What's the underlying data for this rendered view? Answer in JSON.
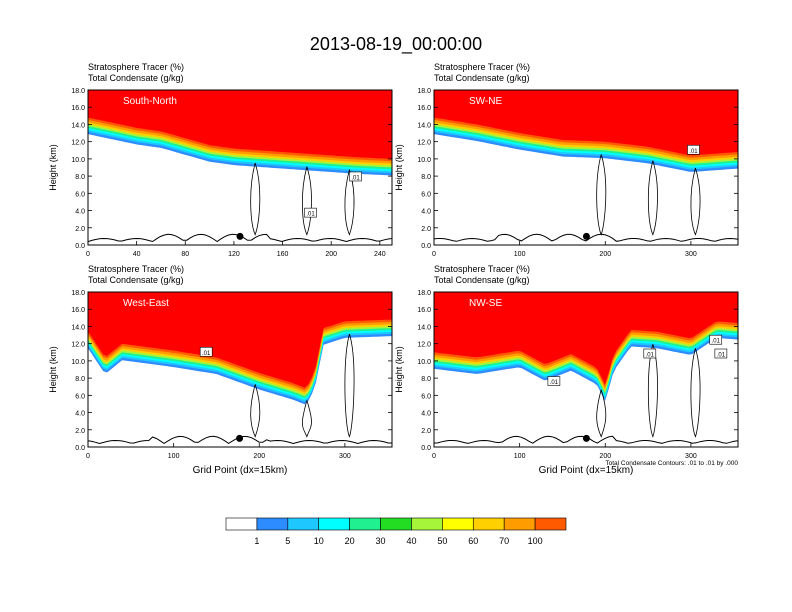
{
  "title": "2013-08-19_00:00:00",
  "colors": {
    "levels": [
      "#ffffff",
      "#2d8cff",
      "#1ec8ff",
      "#00ffff",
      "#20f090",
      "#22dd22",
      "#a6f53a",
      "#ffff00",
      "#ffd000",
      "#ff9c00",
      "#ff5a00",
      "#ff0000"
    ],
    "contour": "#000000",
    "terrain": "#000000",
    "panel_text": "#ffffff"
  },
  "colorbar": {
    "labels": [
      "1",
      "5",
      "10",
      "20",
      "30",
      "40",
      "50",
      "60",
      "70",
      "100"
    ]
  },
  "chart_data": [
    {
      "type": "contour",
      "name": "South-North",
      "title_line1": "Stratosphere Tracer   (%)",
      "title_line2": "Total Condensate   (g/kg)",
      "ylabel": "Height (km)",
      "xlabel": "",
      "xlim": [
        0,
        250
      ],
      "ylim": [
        0,
        18
      ],
      "xticks": [
        "0",
        "40",
        "80",
        "120",
        "160",
        "200",
        "240"
      ],
      "xtick_values": [
        0,
        40,
        80,
        120,
        160,
        200,
        240
      ],
      "yticks": [
        "0.0",
        "2.0",
        "4.0",
        "6.0",
        "8.0",
        "10.0",
        "12.0",
        "14.0",
        "16.0",
        "18.0"
      ],
      "tracer_floor_km": [
        [
          0,
          14.8
        ],
        [
          20,
          14.2
        ],
        [
          40,
          13.6
        ],
        [
          60,
          13.2
        ],
        [
          80,
          12.4
        ],
        [
          100,
          11.6
        ],
        [
          120,
          11.2
        ],
        [
          140,
          11.0
        ],
        [
          160,
          10.8
        ],
        [
          180,
          10.6
        ],
        [
          200,
          10.4
        ],
        [
          220,
          10.2
        ],
        [
          250,
          10.0
        ]
      ],
      "contour_labels": [
        {
          "x": 183,
          "y": 3.7,
          "text": ".01"
        },
        {
          "x": 220,
          "y": 7.9,
          "text": ".01"
        }
      ],
      "dot": {
        "x": 125,
        "y": 1.0
      }
    },
    {
      "type": "contour",
      "name": "SW-NE",
      "title_line1": "Stratosphere Tracer   (%)",
      "title_line2": "Total Condensate   (g/kg)",
      "ylabel": "Height (km)",
      "xlabel": "",
      "xlim": [
        0,
        355
      ],
      "ylim": [
        0,
        18
      ],
      "xticks": [
        "0",
        "100",
        "200",
        "300"
      ],
      "xtick_values": [
        0,
        100,
        200,
        300
      ],
      "yticks": [
        "0.0",
        "2.0",
        "4.0",
        "6.0",
        "8.0",
        "10.0",
        "12.0",
        "14.0",
        "16.0",
        "18.0"
      ],
      "tracer_floor_km": [
        [
          0,
          14.8
        ],
        [
          50,
          14.0
        ],
        [
          100,
          13.0
        ],
        [
          150,
          12.2
        ],
        [
          200,
          12.0
        ],
        [
          250,
          11.4
        ],
        [
          280,
          10.8
        ],
        [
          300,
          10.4
        ],
        [
          355,
          10.8
        ]
      ],
      "contour_labels": [
        {
          "x": 303,
          "y": 11.0,
          "text": ".01"
        }
      ],
      "dot": {
        "x": 178,
        "y": 1.0
      }
    },
    {
      "type": "contour",
      "name": "West-East",
      "title_line1": "Stratosphere Tracer   (%)",
      "title_line2": "Total Condensate   (g/kg)",
      "ylabel": "Height (km)",
      "xlabel": "Grid Point (dx=15km)",
      "xlim": [
        0,
        355
      ],
      "ylim": [
        0,
        18
      ],
      "xticks": [
        "0",
        "100",
        "200",
        "300"
      ],
      "xtick_values": [
        0,
        100,
        200,
        300
      ],
      "yticks": [
        "0.0",
        "2.0",
        "4.0",
        "6.0",
        "8.0",
        "10.0",
        "12.0",
        "14.0",
        "16.0",
        "18.0"
      ],
      "tracer_floor_km": [
        [
          0,
          13.4
        ],
        [
          20,
          10.4
        ],
        [
          40,
          12.0
        ],
        [
          70,
          11.6
        ],
        [
          100,
          11.2
        ],
        [
          150,
          10.4
        ],
        [
          200,
          8.6
        ],
        [
          240,
          7.4
        ],
        [
          255,
          6.8
        ],
        [
          265,
          8.8
        ],
        [
          275,
          13.8
        ],
        [
          300,
          14.6
        ],
        [
          355,
          14.8
        ]
      ],
      "contour_labels": [
        {
          "x": 138,
          "y": 11.0,
          "text": ".01"
        }
      ],
      "dot": {
        "x": 177,
        "y": 1.0
      }
    },
    {
      "type": "contour",
      "name": "NW-SE",
      "title_line1": "Stratosphere Tracer   (%)",
      "title_line2": "Total Condensate   (g/kg)",
      "ylabel": "Height (km)",
      "xlabel": "Grid Point (dx=15km)",
      "xlim": [
        0,
        355
      ],
      "ylim": [
        0,
        18
      ],
      "xticks": [
        "0",
        "100",
        "200",
        "300"
      ],
      "xtick_values": [
        0,
        100,
        200,
        300
      ],
      "yticks": [
        "0.0",
        "2.0",
        "4.0",
        "6.0",
        "8.0",
        "10.0",
        "12.0",
        "14.0",
        "16.0",
        "18.0"
      ],
      "tracer_floor_km": [
        [
          0,
          11.0
        ],
        [
          50,
          10.4
        ],
        [
          100,
          11.2
        ],
        [
          130,
          9.6
        ],
        [
          160,
          10.8
        ],
        [
          190,
          9.2
        ],
        [
          200,
          7.2
        ],
        [
          210,
          10.8
        ],
        [
          230,
          13.6
        ],
        [
          260,
          13.4
        ],
        [
          300,
          12.6
        ],
        [
          330,
          14.6
        ],
        [
          355,
          14.4
        ]
      ],
      "contour_labels": [
        {
          "x": 140,
          "y": 7.6,
          "text": ".01"
        },
        {
          "x": 252,
          "y": 10.8,
          "text": ".01"
        },
        {
          "x": 329,
          "y": 12.4,
          "text": ".01"
        },
        {
          "x": 335,
          "y": 10.8,
          "text": ".01"
        }
      ],
      "dot": {
        "x": 178,
        "y": 1.0
      },
      "footnote": "Total Condensate Contours: .01 to .01 by .000"
    }
  ]
}
